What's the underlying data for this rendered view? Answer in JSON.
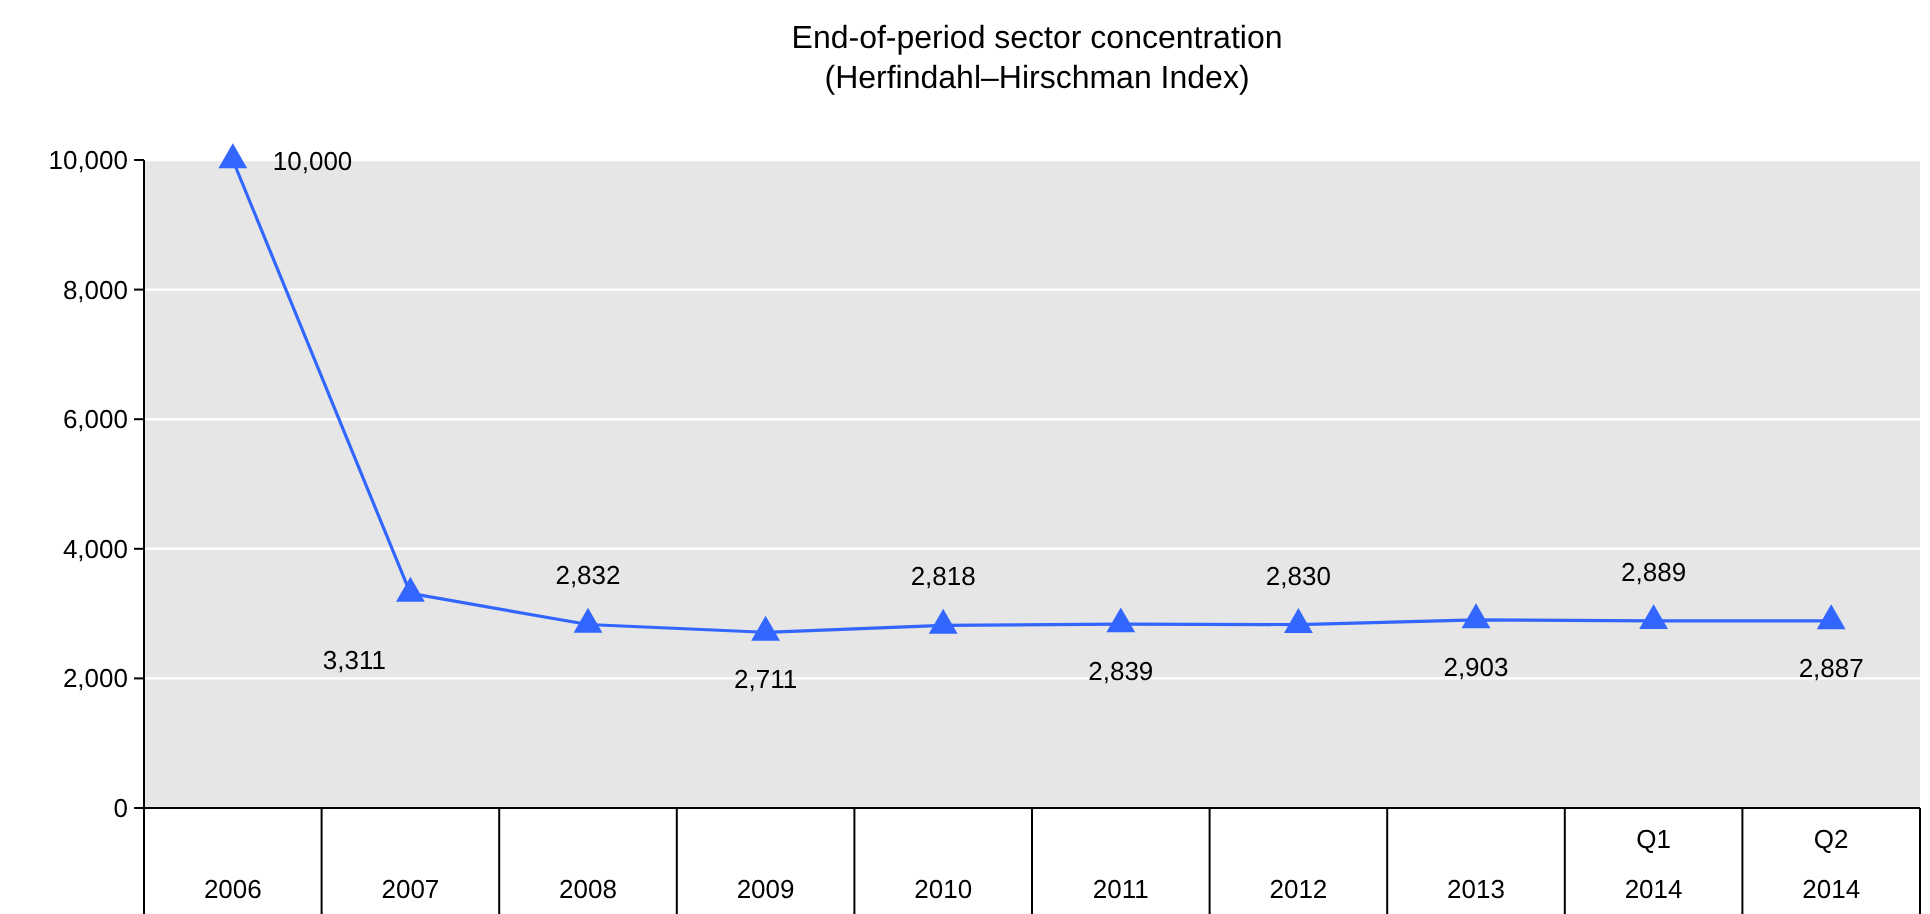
{
  "chart_data": {
    "type": "line",
    "title": "End-of-period sector concentration",
    "subtitle": "(Herfindahl–Hirschman Index)",
    "categories": [
      "2006",
      "2007",
      "2008",
      "2009",
      "2010",
      "2011",
      "2012",
      "2013",
      "Q1\n2014",
      "Q2\n2014"
    ],
    "series": [
      {
        "color": "#3366ff",
        "values": [
          10000,
          3311,
          2832,
          2711,
          2818,
          2839,
          2830,
          2903,
          2889,
          2887
        ],
        "value_labels": [
          "10,000",
          "3,311",
          "2,832",
          "2,711",
          "2,818",
          "2,839",
          "2,830",
          "2,903",
          "2,889",
          "2,887"
        ]
      }
    ],
    "ylim": [
      0,
      10000
    ],
    "yticks": [
      {
        "value": 0,
        "label": "0"
      },
      {
        "value": 2000,
        "label": "2,000"
      },
      {
        "value": 4000,
        "label": "4,000"
      },
      {
        "value": 6000,
        "label": "6,000"
      },
      {
        "value": 8000,
        "label": "8,000"
      },
      {
        "value": 10000,
        "label": "10,000"
      }
    ],
    "grid": "y",
    "marker": "triangle"
  }
}
